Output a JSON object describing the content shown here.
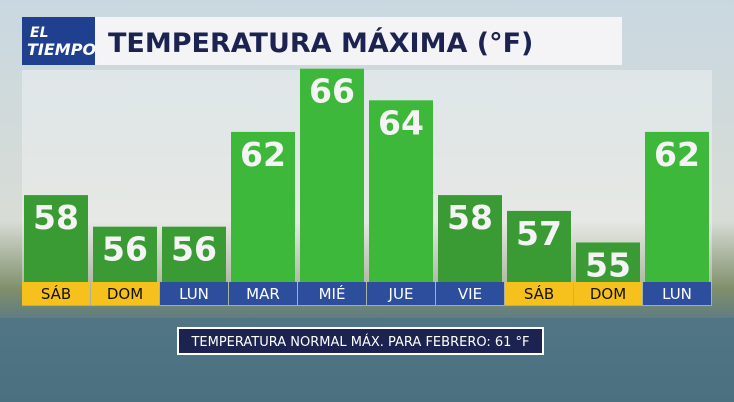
{
  "chart_data": {
    "type": "bar",
    "logo": [
      "EL",
      "TIEMPO"
    ],
    "title": "TEMPERATURA MÁXIMA (°F)",
    "categories": [
      "SÁB",
      "DOM",
      "LUN",
      "MAR",
      "MIÉ",
      "JUE",
      "VIE",
      "SÁB",
      "DOM",
      "LUN"
    ],
    "values": [
      58,
      56,
      56,
      62,
      66,
      64,
      58,
      57,
      55,
      62
    ],
    "colors": [
      "#3a9b34",
      "#3a9b34",
      "#3a9b34",
      "#3db83a",
      "#3db83a",
      "#3db83a",
      "#3a9b34",
      "#3a9b34",
      "#3a9b34",
      "#3db83a"
    ],
    "label_colors": [
      "#f6c11c",
      "#f6c11c",
      "#2d4e9c",
      "#2d4e9c",
      "#2d4e9c",
      "#2d4e9c",
      "#2d4e9c",
      "#f6c11c",
      "#f6c11c",
      "#2d4e9c"
    ],
    "note": "TEMPERATURA NORMAL MÁX. PARA FEBRERO: 61 °F"
  }
}
